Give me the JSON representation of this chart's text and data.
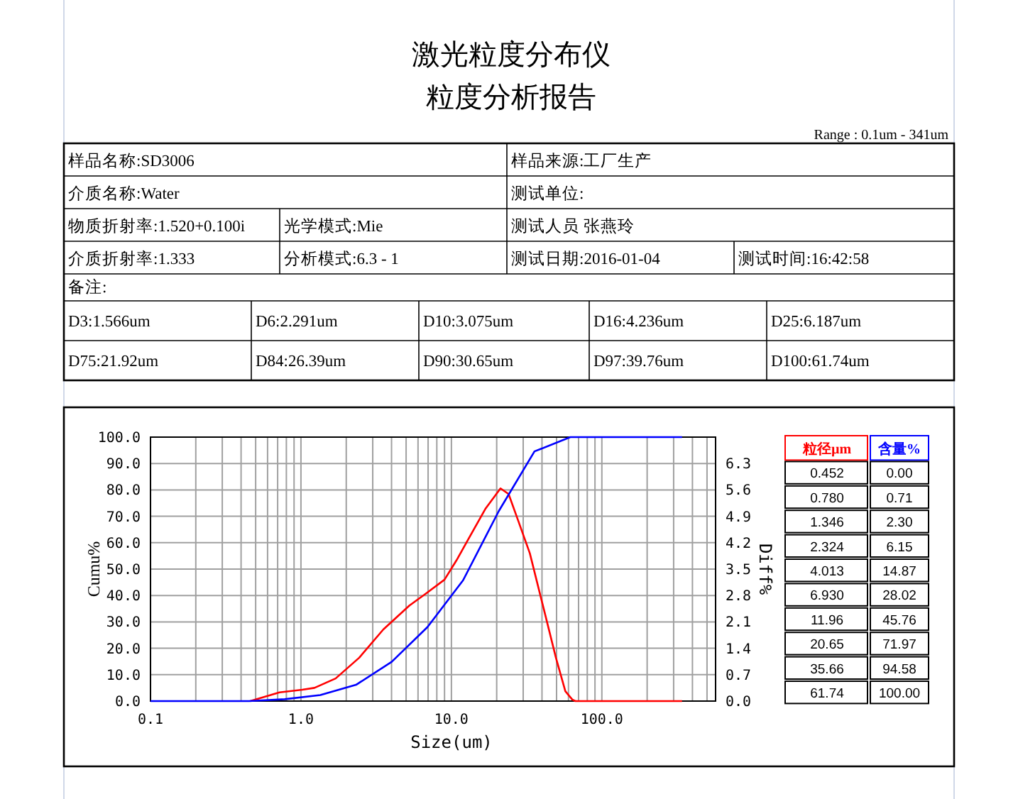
{
  "chart_data": {
    "type": "line",
    "title": "激光粒度分布仪",
    "subtitle": "粒度分析报告",
    "xlabel": "Size(um)",
    "ylabel": "Cumu%",
    "y2label": "Diff%",
    "annotations": [
      "Range : 0.1um - 341um",
      "样品名称:SD3006",
      "样品来源:工厂生产",
      "介质名称:Water",
      "测试单位:",
      "物质折射率:1.520+0.100i",
      "光学模式:Mie",
      "测试人员 张燕玲",
      "介质折射率:1.333",
      "分析模式:6.3 - 1",
      "测试日期:2016-01-04",
      "测试时间:16:42:58",
      "备注:",
      "D3:1.566um",
      "D6:2.291um",
      "D10:3.075um",
      "D16:4.236um",
      "D25:6.187um",
      "D75:21.92um",
      "D84:26.39um",
      "D90:30.65um",
      "D97:39.76um",
      "D100:61.74um",
      "粒径µm",
      "含量%",
      "0.452",
      "0.00",
      "0.780",
      "0.71",
      "1.346",
      "2.30",
      "2.324",
      "6.15",
      "4.013",
      "14.87",
      "6.930",
      "28.02",
      "11.96",
      "45.76",
      "20.65",
      "71.97",
      "35.66",
      "94.58",
      "61.74",
      "100.00"
    ],
    "log": "x",
    "grid": true,
    "marker": "none",
    "line_style": "solid",
    "xlim": [
      0.1,
      570
    ],
    "xticks": [
      {
        "value": 0.1,
        "label": "0.1"
      },
      {
        "value": 0.2,
        "label": null
      },
      {
        "value": 0.3,
        "label": null
      },
      {
        "value": 0.4,
        "label": null
      },
      {
        "value": 0.5,
        "label": null
      },
      {
        "value": 0.6,
        "label": null
      },
      {
        "value": 0.7,
        "label": null
      },
      {
        "value": 0.8,
        "label": null
      },
      {
        "value": 0.9,
        "label": null
      },
      {
        "value": 1,
        "label": "1.0"
      },
      {
        "value": 2,
        "label": null
      },
      {
        "value": 3,
        "label": null
      },
      {
        "value": 4,
        "label": null
      },
      {
        "value": 5,
        "label": null
      },
      {
        "value": 6,
        "label": null
      },
      {
        "value": 7,
        "label": null
      },
      {
        "value": 8,
        "label": null
      },
      {
        "value": 9,
        "label": null
      },
      {
        "value": 10,
        "label": "10.0"
      },
      {
        "value": 20,
        "label": null
      },
      {
        "value": 30,
        "label": null
      },
      {
        "value": 40,
        "label": null
      },
      {
        "value": 50,
        "label": null
      },
      {
        "value": 60,
        "label": null
      },
      {
        "value": 70,
        "label": null
      },
      {
        "value": 80,
        "label": null
      },
      {
        "value": 90,
        "label": null
      },
      {
        "value": 100,
        "label": "100.0"
      },
      {
        "value": 200,
        "label": null
      },
      {
        "value": 300,
        "label": null
      },
      {
        "value": 400,
        "label": null
      },
      {
        "value": 500,
        "label": null
      }
    ],
    "ylim": [
      0,
      100
    ],
    "yticks": [
      {
        "value": 0,
        "label": "0.0"
      },
      {
        "value": 10,
        "label": "10.0"
      },
      {
        "value": 20,
        "label": "20.0"
      },
      {
        "value": 30,
        "label": "30.0"
      },
      {
        "value": 40,
        "label": "40.0"
      },
      {
        "value": 50,
        "label": "50.0"
      },
      {
        "value": 60,
        "label": "60.0"
      },
      {
        "value": 70,
        "label": "70.0"
      },
      {
        "value": 80,
        "label": "80.0"
      },
      {
        "value": 90,
        "label": "90.0"
      },
      {
        "value": 100,
        "label": "100.0"
      }
    ],
    "y2lim": [
      0,
      7
    ],
    "y2ticks": [
      {
        "value": 0,
        "label": "0.0"
      },
      {
        "value": 0.7,
        "label": "0.7"
      },
      {
        "value": 1.4,
        "label": "1.4"
      },
      {
        "value": 2.1,
        "label": "2.1"
      },
      {
        "value": 2.8,
        "label": "2.8"
      },
      {
        "value": 3.5,
        "label": "3.5"
      },
      {
        "value": 4.2,
        "label": "4.2"
      },
      {
        "value": 4.9,
        "label": "4.9"
      },
      {
        "value": 5.6,
        "label": "5.6"
      },
      {
        "value": 6.3,
        "label": "6.3"
      }
    ],
    "series": [
      {
        "color": "#ff0000",
        "axis": "y2",
        "x": [
          0.46,
          0.72,
          1.02,
          1.23,
          1.7,
          2.44,
          3.53,
          5.25,
          6.77,
          9.0,
          10.8,
          13.5,
          16.9,
          21.2,
          24.0,
          27.7,
          33.2,
          41.3,
          49.5,
          57.2,
          63.6,
          66.7,
          341
        ],
        "values": [
          0,
          0.23,
          0.3,
          0.35,
          0.6,
          1.15,
          1.9,
          2.53,
          2.85,
          3.22,
          3.73,
          4.42,
          5.11,
          5.64,
          5.49,
          4.8,
          3.92,
          2.41,
          1.15,
          0.26,
          0.04,
          0,
          0
        ]
      },
      {
        "color": "#0000ff",
        "x": [
          0.1,
          0.452,
          0.78,
          1.346,
          2.324,
          4.013,
          6.93,
          11.96,
          20.65,
          35.66,
          61.74,
          341
        ],
        "values": [
          0,
          0,
          0.71,
          2.3,
          6.15,
          14.87,
          28.02,
          45.76,
          71.97,
          94.58,
          100,
          100
        ]
      }
    ]
  }
}
